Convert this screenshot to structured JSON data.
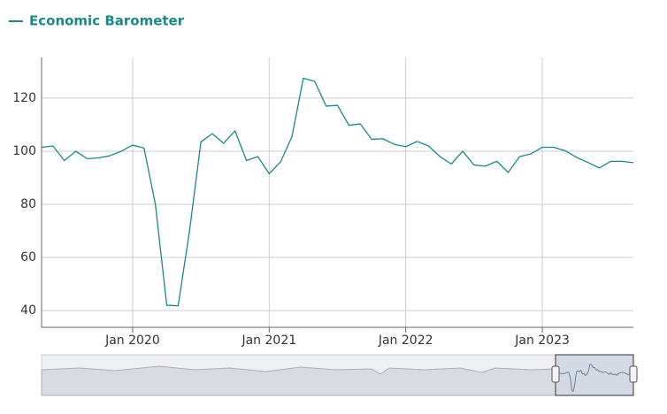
{
  "chart_data": {
    "type": "line",
    "x": [
      "2019-05",
      "2019-06",
      "2019-07",
      "2019-08",
      "2019-09",
      "2019-10",
      "2019-11",
      "2019-12",
      "2020-01",
      "2020-02",
      "2020-03",
      "2020-04",
      "2020-05",
      "2020-06",
      "2020-07",
      "2020-08",
      "2020-09",
      "2020-10",
      "2020-11",
      "2020-12",
      "2021-01",
      "2021-02",
      "2021-03",
      "2021-04",
      "2021-05",
      "2021-06",
      "2021-07",
      "2021-08",
      "2021-09",
      "2021-10",
      "2021-11",
      "2021-12",
      "2022-01",
      "2022-02",
      "2022-03",
      "2022-04",
      "2022-05",
      "2022-06",
      "2022-07",
      "2022-08",
      "2022-09",
      "2022-10",
      "2022-11",
      "2022-12",
      "2023-01",
      "2023-02",
      "2023-03",
      "2023-04",
      "2023-05",
      "2023-06",
      "2023-07",
      "2023-08",
      "2023-09"
    ],
    "series": [
      {
        "name": "Economic Barometer",
        "color": "#1a8a86",
        "values": [
          101.5,
          102,
          96.5,
          100,
          97.2,
          97.5,
          98.3,
          100,
          102.3,
          101.2,
          80,
          42,
          41.8,
          70,
          103.5,
          106.6,
          103,
          107.7,
          96.5,
          98,
          91.5,
          96,
          105.5,
          127.5,
          126.3,
          117,
          117.3,
          109.8,
          110.3,
          104.5,
          104.7,
          102.6,
          101.7,
          103.7,
          102,
          98,
          95.2,
          100,
          94.8,
          94.4,
          96.2,
          92,
          98,
          99,
          101.5,
          101.5,
          100.2,
          97.7,
          95.8,
          93.7,
          96.2,
          96.2,
          95.7
        ]
      }
    ],
    "xlim": [
      "2019-05",
      "2023-09"
    ],
    "xticks": [
      {
        "value": "2020-01",
        "label": "Jan 2020"
      },
      {
        "value": "2021-01",
        "label": "Jan 2021"
      },
      {
        "value": "2022-01",
        "label": "Jan 2022"
      },
      {
        "value": "2023-01",
        "label": "Jan 2023"
      }
    ],
    "ylim": [
      33.7,
      135.3
    ],
    "yticks": [
      40,
      60,
      80,
      100,
      120
    ],
    "grid": true
  }
}
